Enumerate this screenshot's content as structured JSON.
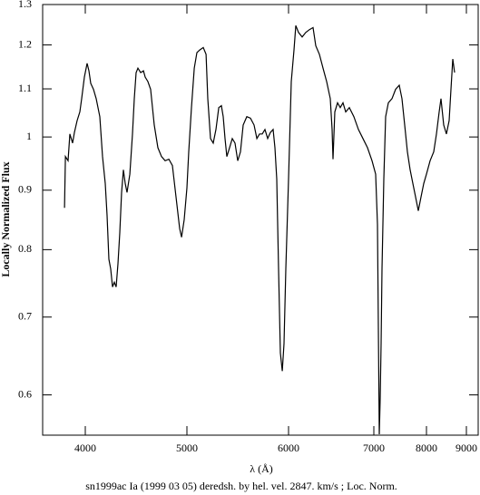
{
  "chart_data": {
    "type": "line",
    "xlabel": "λ (Å)",
    "ylabel": "Locally Normalized Flux",
    "footer": "sn1999ac Ia (1999 03 05) deredsh. by hel. vel.  2847. km/s ;  Loc. Norm.",
    "log_y": true,
    "color": "#000000",
    "xlim": [
      3580,
      9295
    ],
    "xticks": [
      4000,
      5000,
      6000,
      7000,
      8000,
      9000
    ],
    "ylim": [
      0.554,
      1.3
    ],
    "yticks": [
      0.6,
      0.7,
      0.8,
      0.9,
      1,
      1.1,
      1.2,
      1.3
    ],
    "x": [
      3795,
      3804,
      3830,
      3848,
      3875,
      3893,
      3920,
      3946,
      3964,
      3991,
      4018,
      4036,
      4054,
      4080,
      4107,
      4143,
      4170,
      4196,
      4214,
      4232,
      4250,
      4268,
      4286,
      4304,
      4321,
      4339,
      4357,
      4375,
      4393,
      4411,
      4438,
      4464,
      4482,
      4500,
      4518,
      4545,
      4572,
      4589,
      4616,
      4643,
      4679,
      4714,
      4750,
      4786,
      4822,
      4857,
      4893,
      4929,
      4947,
      4973,
      5000,
      5018,
      5045,
      5072,
      5098,
      5125,
      5161,
      5188,
      5205,
      5232,
      5259,
      5286,
      5313,
      5339,
      5357,
      5375,
      5393,
      5420,
      5446,
      5473,
      5500,
      5527,
      5554,
      5589,
      5625,
      5661,
      5688,
      5714,
      5741,
      5768,
      5795,
      5821,
      5848,
      5866,
      5884,
      5902,
      5920,
      5938,
      5955,
      5973,
      6000,
      6032,
      6064,
      6085,
      6117,
      6160,
      6202,
      6245,
      6287,
      6319,
      6362,
      6404,
      6447,
      6489,
      6511,
      6521,
      6543,
      6574,
      6606,
      6638,
      6670,
      6713,
      6766,
      6819,
      6872,
      6926,
      6979,
      7034,
      7069,
      7103,
      7121,
      7138,
      7155,
      7190,
      7224,
      7276,
      7345,
      7414,
      7483,
      7534,
      7586,
      7638,
      7690,
      7741,
      7793,
      7845,
      7897,
      7948,
      8000,
      8091,
      8182,
      8250,
      8318,
      8364,
      8432,
      8500,
      8568,
      8614,
      8659,
      8705
    ],
    "values": [
      0.869,
      0.962,
      0.954,
      1.006,
      0.988,
      1.009,
      1.033,
      1.051,
      1.079,
      1.126,
      1.157,
      1.14,
      1.112,
      1.099,
      1.079,
      1.041,
      0.962,
      0.912,
      0.856,
      0.785,
      0.77,
      0.743,
      0.75,
      0.743,
      0.778,
      0.827,
      0.896,
      0.937,
      0.912,
      0.896,
      0.929,
      1.006,
      1.079,
      1.136,
      1.146,
      1.136,
      1.14,
      1.126,
      1.116,
      1.099,
      1.024,
      0.979,
      0.962,
      0.954,
      0.957,
      0.945,
      0.888,
      0.834,
      0.82,
      0.849,
      0.904,
      0.971,
      1.06,
      1.146,
      1.182,
      1.188,
      1.194,
      1.178,
      1.079,
      0.997,
      0.988,
      1.015,
      1.06,
      1.064,
      1.041,
      0.997,
      0.962,
      0.979,
      0.997,
      0.988,
      0.954,
      0.971,
      1.024,
      1.041,
      1.038,
      1.024,
      0.997,
      1.006,
      1.006,
      1.015,
      0.997,
      1.009,
      1.015,
      0.979,
      0.92,
      0.77,
      0.652,
      0.629,
      0.664,
      0.77,
      0.92,
      1.116,
      1.188,
      1.247,
      1.23,
      1.219,
      1.23,
      1.237,
      1.242,
      1.198,
      1.178,
      1.146,
      1.116,
      1.079,
      1.015,
      0.957,
      1.051,
      1.07,
      1.06,
      1.07,
      1.051,
      1.06,
      1.041,
      1.015,
      0.997,
      0.979,
      0.954,
      0.929,
      0.841,
      0.555,
      0.596,
      0.664,
      0.77,
      0.92,
      1.041,
      1.07,
      1.079,
      1.099,
      1.108,
      1.079,
      1.024,
      0.971,
      0.937,
      0.912,
      0.888,
      0.864,
      0.888,
      0.912,
      0.929,
      0.954,
      0.971,
      1.006,
      1.051,
      1.079,
      1.024,
      1.006,
      1.033,
      1.099,
      1.167,
      1.136
    ]
  }
}
